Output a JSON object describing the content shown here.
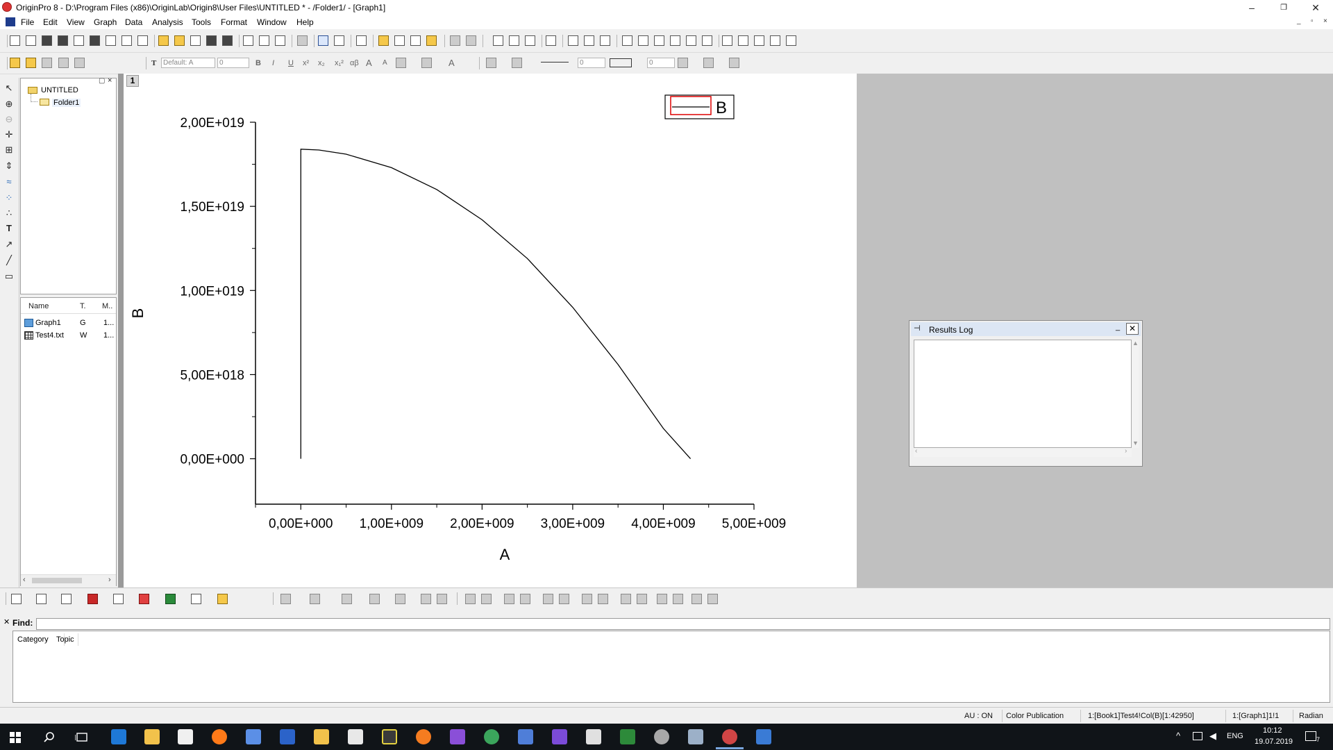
{
  "window": {
    "title": "OriginPro 8 - D:\\Program Files (x86)\\OriginLab\\Origin8\\User Files\\UNTITLED * - /Folder1/ - [Graph1]",
    "minimize": "–",
    "restore": "❐",
    "close": "✕"
  },
  "menu": [
    "File",
    "Edit",
    "View",
    "Graph",
    "Data",
    "Analysis",
    "Tools",
    "Format",
    "Window",
    "Help"
  ],
  "mdi_controls": [
    "_",
    "▫",
    "×"
  ],
  "format_toolbar": {
    "font": "Default: A",
    "font_size": "0",
    "bold": "B",
    "italic": "I",
    "underline": "U",
    "superscript": "x²",
    "subscript": "x₂",
    "supsub": "x₁²",
    "greek": "αβ",
    "grow": "A",
    "shrink": "A",
    "line_width": "0",
    "border_width": "0"
  },
  "project_explorer": {
    "root": "UNTITLED",
    "folder": "Folder1",
    "columns": [
      "Name",
      "T.",
      "M.."
    ],
    "items": [
      {
        "name": "Graph1",
        "type": "G",
        "modified": "1..."
      },
      {
        "name": "Test4.txt",
        "type": "W",
        "modified": "1..."
      }
    ]
  },
  "graph": {
    "layer": "1"
  },
  "chart_data": {
    "type": "line",
    "xlabel": "A",
    "ylabel": "B",
    "legend": [
      "B"
    ],
    "legend_position": "top-right",
    "grid": false,
    "xlim": [
      -500000000,
      5000000000
    ],
    "ylim": [
      -2700000000000000000,
      20000000000000000000
    ],
    "xticks": [
      0,
      1000000000,
      2000000000,
      3000000000,
      4000000000,
      5000000000
    ],
    "xtick_labels": [
      "0,00E+000",
      "1,00E+009",
      "2,00E+009",
      "3,00E+009",
      "4,00E+009",
      "5,00E+009"
    ],
    "yticks": [
      0,
      5000000000000000000,
      10000000000000000000,
      15000000000000000000,
      20000000000000000000
    ],
    "ytick_labels": [
      "0,00E+000",
      "5,00E+018",
      "1,00E+019",
      "1,50E+019",
      "2,00E+019"
    ],
    "series": [
      {
        "name": "B",
        "color": "#000000",
        "x": [
          0,
          0,
          200000000,
          500000000,
          1000000000,
          1500000000,
          2000000000,
          2500000000,
          3000000000,
          3500000000,
          4000000000,
          4300000000
        ],
        "y": [
          0,
          18400000000000000000,
          18350000000000000000,
          18100000000000000000,
          17300000000000000000,
          16000000000000000000,
          14200000000000000000,
          11900000000000000000,
          9000000000000000000,
          5600000000000000000,
          1800000000000000000,
          0
        ]
      }
    ]
  },
  "results_log": {
    "title": "Results Log",
    "minimize": "_",
    "close": "✕"
  },
  "find_panel": {
    "label": "Find:",
    "close": "✕",
    "tabs": [
      "Category",
      "Topic"
    ]
  },
  "status_bar": {
    "au": "AU : ON",
    "theme": "Color Publication",
    "dataset": "1:[Book1]Test4!Col(B)[1:42950]",
    "layer": "1:[Graph1]1!1",
    "angle": "Radian"
  },
  "taskbar": {
    "lang": "ENG",
    "time": "10:12",
    "date": "19.07.2019",
    "notifications": "7",
    "tray_chevron": "^"
  }
}
